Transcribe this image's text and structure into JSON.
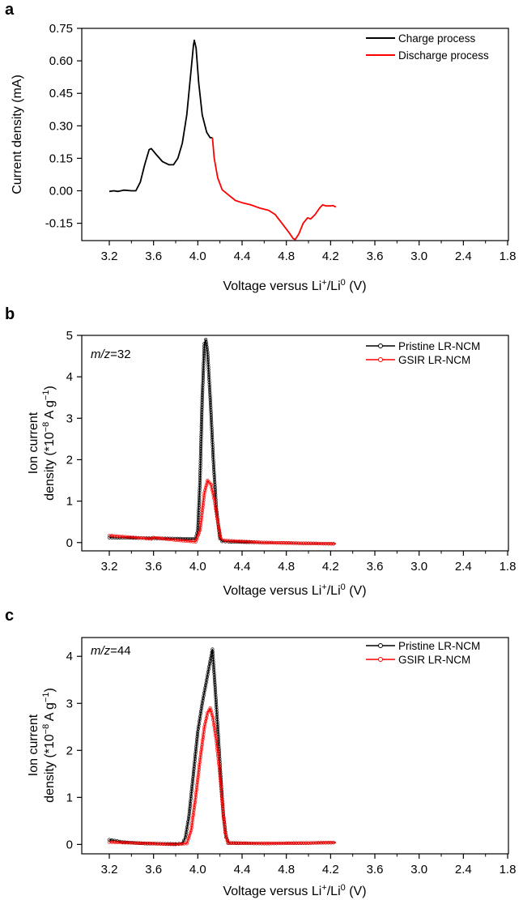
{
  "chart_data": [
    {
      "panel": "a",
      "type": "line",
      "xlabel_main": "Voltage versus Li",
      "xlabel_sup1": "+",
      "xlabel_mid": "/Li",
      "xlabel_sup2": "0",
      "xlabel_tail": " (V)",
      "ylabel": "Current density (mA)",
      "x_tick_labels": [
        "3.2",
        "3.6",
        "4.0",
        "4.4",
        "4.8",
        "4.2",
        "3.6",
        "3.0",
        "2.4",
        "1.8"
      ],
      "y_ticks": [
        "0.75",
        "0.60",
        "0.45",
        "0.30",
        "0.15",
        "0.00",
        "-0.15"
      ],
      "ylim": [
        -0.23,
        0.75
      ],
      "legend_position": "top-right",
      "series": [
        {
          "name": "Charge process",
          "color": "#000000",
          "points": [
            [
              0.0,
              -0.003
            ],
            [
              0.1,
              0.0
            ],
            [
              0.2,
              -0.003
            ],
            [
              0.33,
              0.003
            ],
            [
              0.5,
              0.0
            ],
            [
              0.6,
              0.0
            ],
            [
              0.7,
              0.04
            ],
            [
              0.8,
              0.12
            ],
            [
              0.9,
              0.19
            ],
            [
              0.95,
              0.195
            ],
            [
              1.05,
              0.17
            ],
            [
              1.2,
              0.135
            ],
            [
              1.35,
              0.12
            ],
            [
              1.45,
              0.12
            ],
            [
              1.55,
              0.15
            ],
            [
              1.65,
              0.22
            ],
            [
              1.75,
              0.35
            ],
            [
              1.85,
              0.56
            ],
            [
              1.9,
              0.67
            ],
            [
              1.92,
              0.695
            ],
            [
              1.96,
              0.66
            ],
            [
              2.02,
              0.5
            ],
            [
              2.1,
              0.35
            ],
            [
              2.2,
              0.27
            ],
            [
              2.28,
              0.245
            ],
            [
              2.33,
              0.245
            ]
          ]
        },
        {
          "name": "Discharge process",
          "color": "#ff0000",
          "points": [
            [
              2.33,
              0.245
            ],
            [
              2.37,
              0.15
            ],
            [
              2.45,
              0.06
            ],
            [
              2.55,
              0.005
            ],
            [
              2.7,
              -0.02
            ],
            [
              2.85,
              -0.045
            ],
            [
              3.0,
              -0.055
            ],
            [
              3.2,
              -0.065
            ],
            [
              3.4,
              -0.08
            ],
            [
              3.6,
              -0.09
            ],
            [
              3.75,
              -0.11
            ],
            [
              3.9,
              -0.15
            ],
            [
              4.05,
              -0.19
            ],
            [
              4.15,
              -0.22
            ],
            [
              4.2,
              -0.225
            ],
            [
              4.28,
              -0.2
            ],
            [
              4.38,
              -0.15
            ],
            [
              4.48,
              -0.125
            ],
            [
              4.55,
              -0.13
            ],
            [
              4.65,
              -0.11
            ],
            [
              4.75,
              -0.08
            ],
            [
              4.82,
              -0.065
            ],
            [
              4.9,
              -0.07
            ],
            [
              5.0,
              -0.07
            ],
            [
              5.05,
              -0.068
            ],
            [
              5.12,
              -0.075
            ]
          ]
        }
      ]
    },
    {
      "panel": "b",
      "type": "line",
      "annotation_italic": "m/z",
      "annotation_value": "=32",
      "xlabel_main": "Voltage versus Li",
      "xlabel_sup1": "+",
      "xlabel_mid": "/Li",
      "xlabel_sup2": "0",
      "xlabel_tail": " (V)",
      "ylabel_line1": "Ion current",
      "ylabel_line2_a": "density (*10",
      "ylabel_line2_sup1": "−8",
      "ylabel_line2_b": " A g",
      "ylabel_line2_sup2": "−1",
      "ylabel_line2_c": ")",
      "x_tick_labels": [
        "3.2",
        "3.6",
        "4.0",
        "4.4",
        "4.8",
        "4.2",
        "3.6",
        "3.0",
        "2.4",
        "1.8"
      ],
      "y_ticks": [
        "5",
        "4",
        "3",
        "2",
        "1",
        "0"
      ],
      "ylim": [
        -0.2,
        5
      ],
      "legend_position": "top-right",
      "series": [
        {
          "name": "Pristine LR-NCM",
          "color": "#000000",
          "points": [
            [
              0.0,
              0.12
            ],
            [
              0.6,
              0.11
            ],
            [
              1.2,
              0.1
            ],
            [
              1.95,
              0.09
            ],
            [
              2.0,
              0.3
            ],
            [
              2.05,
              1.5
            ],
            [
              2.1,
              3.5
            ],
            [
              2.15,
              4.8
            ],
            [
              2.18,
              4.9
            ],
            [
              2.22,
              4.6
            ],
            [
              2.28,
              3.5
            ],
            [
              2.35,
              2.0
            ],
            [
              2.42,
              0.8
            ],
            [
              2.5,
              0.1
            ],
            [
              2.55,
              0.03
            ],
            [
              2.7,
              0.02
            ],
            [
              3.5,
              0.0
            ],
            [
              4.5,
              -0.02
            ],
            [
              5.12,
              -0.03
            ]
          ]
        },
        {
          "name": "GSIR LR-NCM",
          "color": "#ff0000",
          "points": [
            [
              0.0,
              0.17
            ],
            [
              0.6,
              0.12
            ],
            [
              0.95,
              0.09
            ],
            [
              1.0,
              0.12
            ],
            [
              1.5,
              0.06
            ],
            [
              1.95,
              0.02
            ],
            [
              2.05,
              0.3
            ],
            [
              2.15,
              1.2
            ],
            [
              2.22,
              1.5
            ],
            [
              2.3,
              1.4
            ],
            [
              2.38,
              1.0
            ],
            [
              2.45,
              0.5
            ],
            [
              2.52,
              0.1
            ],
            [
              2.6,
              0.05
            ],
            [
              3.5,
              0.0
            ],
            [
              4.5,
              -0.02
            ],
            [
              5.12,
              -0.03
            ]
          ]
        }
      ]
    },
    {
      "panel": "c",
      "type": "line",
      "annotation_italic": "m/z",
      "annotation_value": "=44",
      "xlabel_main": "Voltage versus Li",
      "xlabel_sup1": "+",
      "xlabel_mid": "/Li",
      "xlabel_sup2": "0",
      "xlabel_tail": " (V)",
      "ylabel_line1": "Ion current",
      "ylabel_line2_a": "density (*10",
      "ylabel_line2_sup1": "−8",
      "ylabel_line2_b": " A g",
      "ylabel_line2_sup2": "−1",
      "ylabel_line2_c": ")",
      "x_tick_labels": [
        "3.2",
        "3.6",
        "4.0",
        "4.4",
        "4.8",
        "4.2",
        "3.6",
        "3.0",
        "2.4",
        "1.8"
      ],
      "y_ticks": [
        "4",
        "3",
        "2",
        "1",
        "0"
      ],
      "ylim": [
        -0.2,
        4.4
      ],
      "legend_position": "top-right",
      "series": [
        {
          "name": "Pristine LR-NCM",
          "color": "#000000",
          "points": [
            [
              0.0,
              0.1
            ],
            [
              0.3,
              0.05
            ],
            [
              0.8,
              0.02
            ],
            [
              1.5,
              0.01
            ],
            [
              1.65,
              0.02
            ],
            [
              1.72,
              0.15
            ],
            [
              1.8,
              0.6
            ],
            [
              1.9,
              1.5
            ],
            [
              2.0,
              2.4
            ],
            [
              2.1,
              3.0
            ],
            [
              2.2,
              3.5
            ],
            [
              2.28,
              3.9
            ],
            [
              2.33,
              4.15
            ],
            [
              2.38,
              3.5
            ],
            [
              2.45,
              2.5
            ],
            [
              2.52,
              1.4
            ],
            [
              2.58,
              0.6
            ],
            [
              2.64,
              0.15
            ],
            [
              2.7,
              0.03
            ],
            [
              3.5,
              0.02
            ],
            [
              4.5,
              0.03
            ],
            [
              5.12,
              0.04
            ]
          ]
        },
        {
          "name": "GSIR LR-NCM",
          "color": "#ff0000",
          "points": [
            [
              0.0,
              0.05
            ],
            [
              0.6,
              0.03
            ],
            [
              1.5,
              0.0
            ],
            [
              1.75,
              0.02
            ],
            [
              1.85,
              0.3
            ],
            [
              1.95,
              1.0
            ],
            [
              2.05,
              1.8
            ],
            [
              2.15,
              2.5
            ],
            [
              2.22,
              2.8
            ],
            [
              2.28,
              2.9
            ],
            [
              2.34,
              2.7
            ],
            [
              2.42,
              2.2
            ],
            [
              2.5,
              1.5
            ],
            [
              2.56,
              0.8
            ],
            [
              2.62,
              0.25
            ],
            [
              2.68,
              0.03
            ],
            [
              3.5,
              0.02
            ],
            [
              4.5,
              0.03
            ],
            [
              5.12,
              0.04
            ]
          ]
        }
      ]
    }
  ],
  "figure": {
    "label_a": "a",
    "label_b": "b",
    "label_c": "c"
  }
}
